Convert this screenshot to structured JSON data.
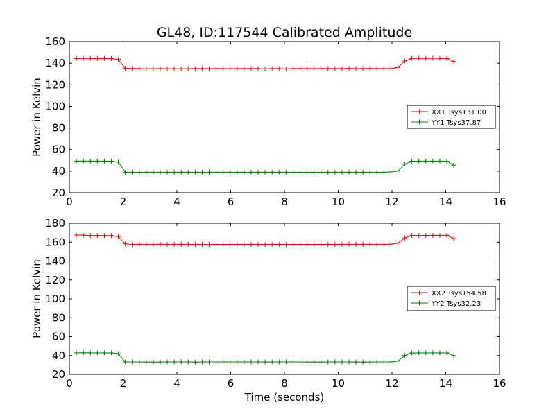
{
  "title": "GL48, ID:117544 Calibrated Amplitude",
  "colors": {
    "xx": "#ff0000",
    "yy": "#008000",
    "axes": "#000000",
    "background": "#ffffff"
  },
  "chart_data": [
    {
      "type": "line",
      "xlabel": "",
      "ylabel": "Power in Kelvin",
      "xlim": [
        0,
        16
      ],
      "ylim": [
        20,
        160
      ],
      "xticks": [
        0,
        2,
        4,
        6,
        8,
        10,
        12,
        14,
        16
      ],
      "yticks": [
        20,
        40,
        60,
        80,
        100,
        120,
        140,
        160
      ],
      "grid": false,
      "legend_position": "right",
      "series": [
        {
          "name": "XX1 Tsys131.00",
          "color": "#ff0000",
          "x": [
            0.26,
            0.52,
            0.78,
            1.04,
            1.3,
            1.56,
            1.82,
            2.08,
            2.34,
            2.6,
            2.86,
            3.12,
            3.38,
            3.64,
            3.9,
            4.16,
            4.42,
            4.68,
            4.94,
            5.2,
            5.46,
            5.72,
            5.98,
            6.24,
            6.5,
            6.76,
            7.02,
            7.28,
            7.54,
            7.8,
            8.06,
            8.32,
            8.58,
            8.84,
            9.1,
            9.36,
            9.62,
            9.88,
            10.14,
            10.4,
            10.66,
            10.92,
            11.18,
            11.44,
            11.7,
            11.96,
            12.22,
            12.48,
            12.74,
            13.0,
            13.26,
            13.52,
            13.78,
            14.04,
            14.3
          ],
          "y": [
            144.3,
            144.5,
            144.4,
            144.3,
            144.4,
            144.3,
            143.5,
            135.2,
            135.1,
            135.0,
            134.8,
            134.9,
            135.0,
            134.8,
            134.9,
            134.8,
            134.9,
            135.0,
            135.0,
            134.9,
            135.0,
            135.0,
            134.9,
            135.0,
            135.0,
            135.0,
            135.0,
            134.7,
            135.0,
            135.0,
            134.6,
            135.0,
            135.0,
            135.0,
            135.0,
            135.0,
            135.0,
            135.0,
            135.0,
            135.1,
            135.0,
            135.0,
            135.1,
            135.0,
            135.0,
            135.0,
            136.0,
            142.0,
            144.4,
            144.5,
            144.4,
            144.6,
            144.4,
            144.3,
            141.5
          ]
        },
        {
          "name": "YY1 Tsys37.87",
          "color": "#008000",
          "x": [
            0.26,
            0.52,
            0.78,
            1.04,
            1.3,
            1.56,
            1.82,
            2.08,
            2.34,
            2.6,
            2.86,
            3.12,
            3.38,
            3.64,
            3.9,
            4.16,
            4.42,
            4.68,
            4.94,
            5.2,
            5.46,
            5.72,
            5.98,
            6.24,
            6.5,
            6.76,
            7.02,
            7.28,
            7.54,
            7.8,
            8.06,
            8.32,
            8.58,
            8.84,
            9.1,
            9.36,
            9.62,
            9.88,
            10.14,
            10.4,
            10.66,
            10.92,
            11.18,
            11.44,
            11.7,
            11.96,
            12.22,
            12.48,
            12.74,
            13.0,
            13.26,
            13.52,
            13.78,
            14.04,
            14.3
          ],
          "y": [
            49.3,
            49.4,
            49.3,
            49.3,
            49.3,
            49.2,
            48.4,
            39.0,
            39.0,
            39.0,
            39.0,
            39.0,
            39.0,
            39.0,
            39.0,
            39.0,
            39.0,
            39.0,
            39.0,
            39.0,
            39.0,
            39.0,
            39.0,
            39.0,
            39.0,
            39.0,
            39.0,
            39.0,
            39.0,
            39.0,
            39.0,
            39.0,
            39.0,
            39.0,
            39.0,
            39.0,
            39.0,
            39.0,
            39.0,
            39.0,
            39.0,
            39.0,
            39.0,
            39.0,
            39.0,
            39.3,
            40.0,
            46.5,
            49.2,
            49.3,
            49.3,
            49.3,
            49.3,
            49.3,
            45.5
          ]
        }
      ]
    },
    {
      "type": "line",
      "xlabel": "Time (seconds)",
      "ylabel": "Power in Kelvin",
      "xlim": [
        0,
        16
      ],
      "ylim": [
        20,
        180
      ],
      "xticks": [
        0,
        2,
        4,
        6,
        8,
        10,
        12,
        14,
        16
      ],
      "yticks": [
        20,
        40,
        60,
        80,
        100,
        120,
        140,
        160,
        180
      ],
      "grid": false,
      "legend_position": "right",
      "series": [
        {
          "name": "XX2 Tsys154.58",
          "color": "#ff0000",
          "x": [
            0.26,
            0.52,
            0.78,
            1.04,
            1.3,
            1.56,
            1.82,
            2.08,
            2.34,
            2.6,
            2.86,
            3.12,
            3.38,
            3.64,
            3.9,
            4.16,
            4.42,
            4.68,
            4.94,
            5.2,
            5.46,
            5.72,
            5.98,
            6.24,
            6.5,
            6.76,
            7.02,
            7.28,
            7.54,
            7.8,
            8.06,
            8.32,
            8.58,
            8.84,
            9.1,
            9.36,
            9.62,
            9.88,
            10.14,
            10.4,
            10.66,
            10.92,
            11.18,
            11.44,
            11.7,
            11.96,
            12.22,
            12.48,
            12.74,
            13.0,
            13.26,
            13.52,
            13.78,
            14.04,
            14.3
          ],
          "y": [
            167.5,
            167.4,
            167.0,
            167.1,
            167.0,
            167.0,
            166.0,
            158.2,
            157.5,
            157.8,
            157.6,
            157.5,
            157.8,
            157.6,
            157.7,
            157.7,
            157.7,
            157.6,
            157.6,
            157.6,
            157.6,
            157.6,
            157.6,
            157.6,
            157.6,
            157.6,
            157.6,
            157.6,
            157.6,
            157.6,
            157.6,
            157.6,
            157.6,
            157.6,
            157.6,
            157.6,
            157.6,
            157.6,
            157.6,
            157.7,
            157.7,
            157.7,
            157.7,
            157.7,
            157.7,
            157.8,
            159.0,
            164.5,
            167.2,
            167.0,
            167.2,
            167.3,
            167.2,
            167.3,
            163.8
          ]
        },
        {
          "name": "YY2 Tsys32.23",
          "color": "#008000",
          "x": [
            0.26,
            0.52,
            0.78,
            1.04,
            1.3,
            1.56,
            1.82,
            2.08,
            2.34,
            2.6,
            2.86,
            3.12,
            3.38,
            3.64,
            3.9,
            4.16,
            4.42,
            4.68,
            4.94,
            5.2,
            5.46,
            5.72,
            5.98,
            6.24,
            6.5,
            6.76,
            7.02,
            7.28,
            7.54,
            7.8,
            8.06,
            8.32,
            8.58,
            8.84,
            9.1,
            9.36,
            9.62,
            9.88,
            10.14,
            10.4,
            10.66,
            10.92,
            11.18,
            11.44,
            11.7,
            11.96,
            12.22,
            12.48,
            12.74,
            13.0,
            13.26,
            13.52,
            13.78,
            14.04,
            14.3
          ],
          "y": [
            42.8,
            42.9,
            42.8,
            42.8,
            42.8,
            42.8,
            42.0,
            33.2,
            33.2,
            33.2,
            33.1,
            33.0,
            33.1,
            33.2,
            33.2,
            33.2,
            33.2,
            33.0,
            33.2,
            33.2,
            33.2,
            33.2,
            33.2,
            33.2,
            33.2,
            33.2,
            33.2,
            33.1,
            33.2,
            33.2,
            33.2,
            33.2,
            33.2,
            33.1,
            33.1,
            33.1,
            33.2,
            33.2,
            33.2,
            33.2,
            33.1,
            33.1,
            33.1,
            33.2,
            33.2,
            33.3,
            34.0,
            40.0,
            42.7,
            42.8,
            42.8,
            42.8,
            42.8,
            42.8,
            39.8
          ]
        }
      ]
    }
  ]
}
